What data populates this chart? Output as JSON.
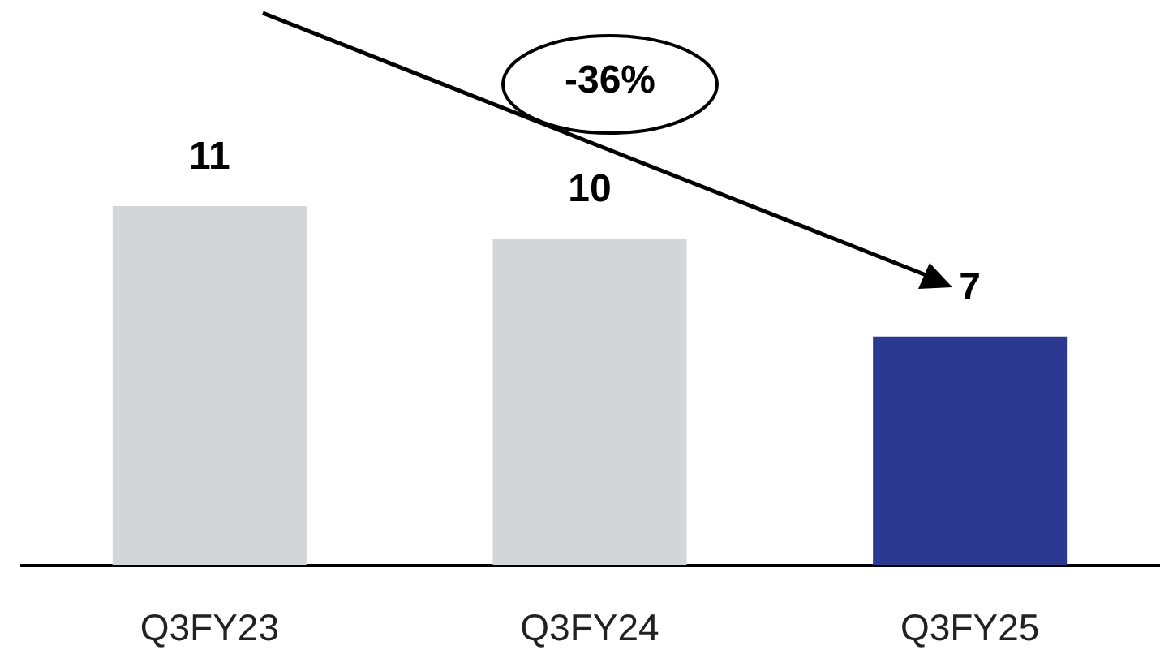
{
  "chart_data": {
    "type": "bar",
    "categories": [
      "Q3FY23",
      "Q3FY24",
      "Q3FY25"
    ],
    "values": [
      11,
      10,
      7
    ],
    "colors": [
      "#d4d5d9",
      "#d4d5d9",
      "#2b3990"
    ],
    "data_labels": true,
    "annotations": [
      "-36%"
    ]
  }
}
